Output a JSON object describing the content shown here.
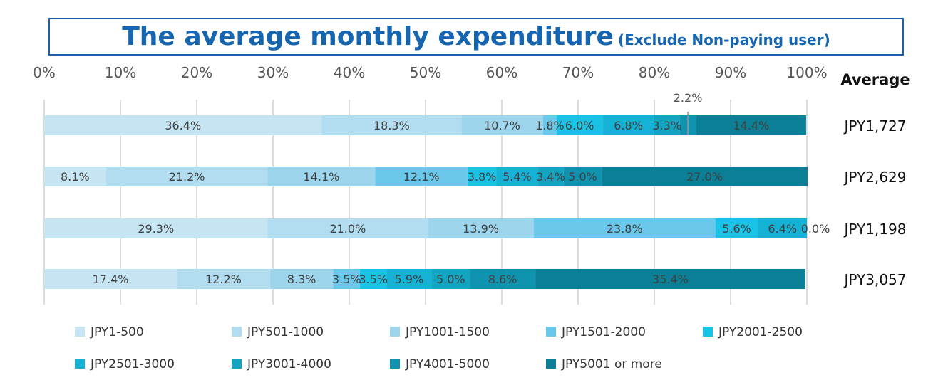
{
  "title": "The average monthly expenditure",
  "subtitle": "(Exclude Non-paying user)",
  "average_header": "Average",
  "colors": [
    "#c5e5f3",
    "#b2dcf0",
    "#9dd5ec",
    "#6bc8ea",
    "#1ac3e5",
    "#15b2d6",
    "#12a4c0",
    "#0f93af",
    "#0a7f96"
  ],
  "chart_data": {
    "type": "bar",
    "orientation": "horizontal",
    "stacked": "percent",
    "xlim": [
      0,
      100
    ],
    "x_ticks": [
      "0%",
      "10%",
      "20%",
      "30%",
      "40%",
      "50%",
      "60%",
      "70%",
      "80%",
      "90%",
      "100%"
    ],
    "legend_position": "bottom",
    "grid": true,
    "series": [
      {
        "name": "JPY1-500",
        "values": [
          36.4,
          8.1,
          29.3,
          17.4
        ]
      },
      {
        "name": "JPY501-1000",
        "values": [
          18.3,
          21.2,
          21.0,
          12.2
        ]
      },
      {
        "name": "JPY1001-1500",
        "values": [
          10.7,
          14.1,
          13.9,
          8.3
        ]
      },
      {
        "name": "JPY1501-2000",
        "values": [
          1.8,
          12.1,
          23.8,
          3.5
        ]
      },
      {
        "name": "JPY2001-2500",
        "values": [
          6.0,
          3.8,
          5.6,
          3.5
        ]
      },
      {
        "name": "JPY2501-3000",
        "values": [
          6.8,
          5.4,
          6.4,
          5.9
        ]
      },
      {
        "name": "JPY3001-4000",
        "values": [
          3.3,
          3.4,
          0.0,
          5.0
        ]
      },
      {
        "name": "JPY4001-5000",
        "values": [
          2.2,
          5.0,
          0.0,
          8.6
        ]
      },
      {
        "name": "JPY5001 or more",
        "values": [
          14.4,
          27.0,
          0.0,
          35.4
        ]
      }
    ],
    "labels": [
      [
        "36.4%",
        "18.3%",
        "10.7%",
        "1.8%",
        "6.0%",
        "6.8%",
        "3.3%",
        "2.2%",
        "14.4%"
      ],
      [
        "8.1%",
        "21.2%",
        "14.1%",
        "12.1%",
        "3.8%",
        "5.4%",
        "3.4%",
        "5.0%",
        "27.0%"
      ],
      [
        "29.3%",
        "21.0%",
        "13.9%",
        "23.8%",
        "5.6%",
        "6.4%",
        "0.0%",
        "",
        ""
      ],
      [
        "17.4%",
        "12.2%",
        "8.3%",
        "3.5%",
        "3.5%",
        "5.9%",
        "5.0%",
        "8.6%",
        "35.4%"
      ]
    ],
    "averages": [
      "JPY1,727",
      "JPY2,629",
      "JPY1,198",
      "JPY3,057"
    ]
  }
}
